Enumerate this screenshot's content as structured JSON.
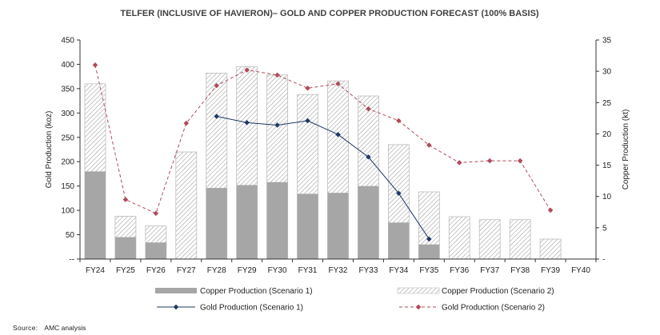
{
  "chart_data": {
    "type": "bar",
    "title": "TELFER (INCLUSIVE OF HAVIERON)– GOLD AND COPPER PRODUCTION FORECAST (100% BASIS)",
    "categories": [
      "FY24",
      "FY25",
      "FY26",
      "FY27",
      "FY28",
      "FY29",
      "FY30",
      "FY31",
      "FY32",
      "FY33",
      "FY34",
      "FY35",
      "FY36",
      "FY37",
      "FY38",
      "FY39",
      "FY40"
    ],
    "ylabel": "Gold Production (koz)",
    "y2label": "Copper Production (kt)",
    "ylim": [
      0,
      450
    ],
    "y2lim": [
      0,
      35
    ],
    "yticks": [
      "--",
      "50",
      "100",
      "150",
      "200",
      "250",
      "300",
      "350",
      "400",
      "450"
    ],
    "y2ticks": [
      "-",
      "5",
      "10",
      "15",
      "20",
      "25",
      "30",
      "35"
    ],
    "series": [
      {
        "name": "Copper Production (Scenario 1)",
        "type": "bar",
        "axis": "left",
        "color": "#a6a6a6",
        "values": [
          180,
          45,
          34,
          0,
          146,
          152,
          158,
          134,
          136,
          150,
          75,
          30,
          0,
          0,
          0,
          0,
          0
        ]
      },
      {
        "name": "Copper Production (Scenario 2)",
        "type": "bar-hatched",
        "axis": "left",
        "color": "#bfbfbf",
        "values": [
          360,
          88,
          68,
          220,
          382,
          395,
          378,
          338,
          366,
          335,
          235,
          138,
          87,
          81,
          81,
          41,
          0
        ]
      },
      {
        "name": "Gold Production (Scenario 1)",
        "type": "line",
        "axis": "right",
        "color": "#1f3864",
        "values": [
          null,
          null,
          null,
          null,
          22.8,
          21.8,
          21.4,
          22.1,
          19.9,
          16.3,
          10.5,
          3.2,
          null,
          null,
          null,
          null,
          null
        ]
      },
      {
        "name": "Gold Production (Scenario 2)",
        "type": "line-dashed",
        "axis": "right",
        "color": "#b04a5a",
        "values": [
          31.0,
          9.5,
          7.3,
          21.7,
          27.7,
          30.2,
          29.4,
          27.3,
          28.0,
          24.0,
          22.1,
          18.2,
          15.4,
          15.7,
          15.7,
          7.8,
          null
        ]
      }
    ],
    "legend_position": "bottom",
    "grid": false
  },
  "source": {
    "label": "Source:",
    "text": "AMC analysis"
  }
}
